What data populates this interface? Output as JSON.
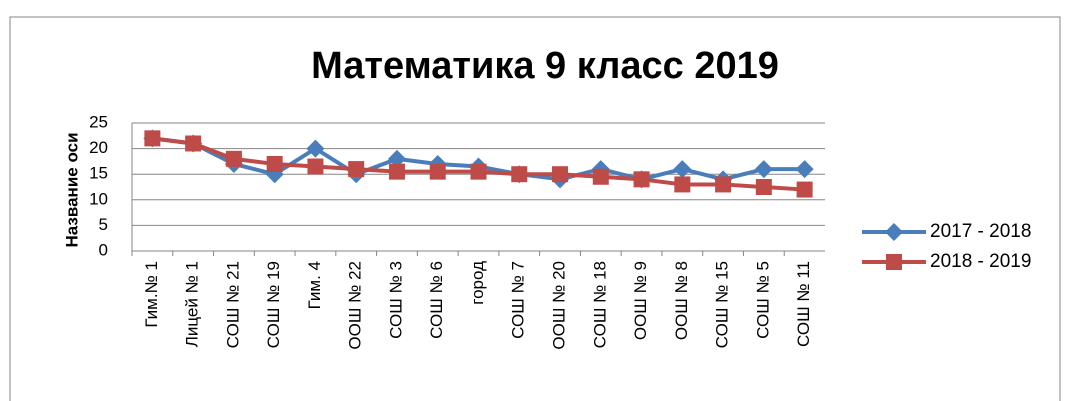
{
  "chart_data": {
    "type": "line",
    "title": "Математика 9 класс 2019",
    "y_label": "Название оси",
    "categories": [
      "Гим.№ 1",
      "Лицей № 1",
      "СОШ № 21",
      "СОШ № 19",
      "Гим. 4",
      "ООШ № 22",
      "СОШ № 3",
      "СОШ № 6",
      "город",
      "СОШ № 7",
      "ООШ № 20",
      "СОШ № 18",
      "ООШ № 9",
      "ООШ № 8",
      "СОШ № 15",
      "СОШ № 5",
      "СОШ № 11"
    ],
    "series": [
      {
        "name": "2017 - 2018",
        "color": "#4a7ebb",
        "marker": "diamond",
        "values": [
          22,
          21,
          17,
          15,
          20,
          15,
          18,
          17,
          16.5,
          15,
          14,
          16,
          14,
          16,
          14,
          16,
          16
        ]
      },
      {
        "name": "2018 - 2019",
        "color": "#be4b48",
        "marker": "square",
        "values": [
          22,
          21,
          18,
          17,
          16.5,
          16,
          15.5,
          15.5,
          15.5,
          15,
          15,
          14.5,
          14,
          13,
          13,
          12.5,
          12
        ]
      }
    ],
    "ylim": [
      0,
      25
    ],
    "yticks": [
      0,
      5,
      10,
      15,
      20,
      25
    ],
    "grid": true,
    "legend": "right"
  }
}
